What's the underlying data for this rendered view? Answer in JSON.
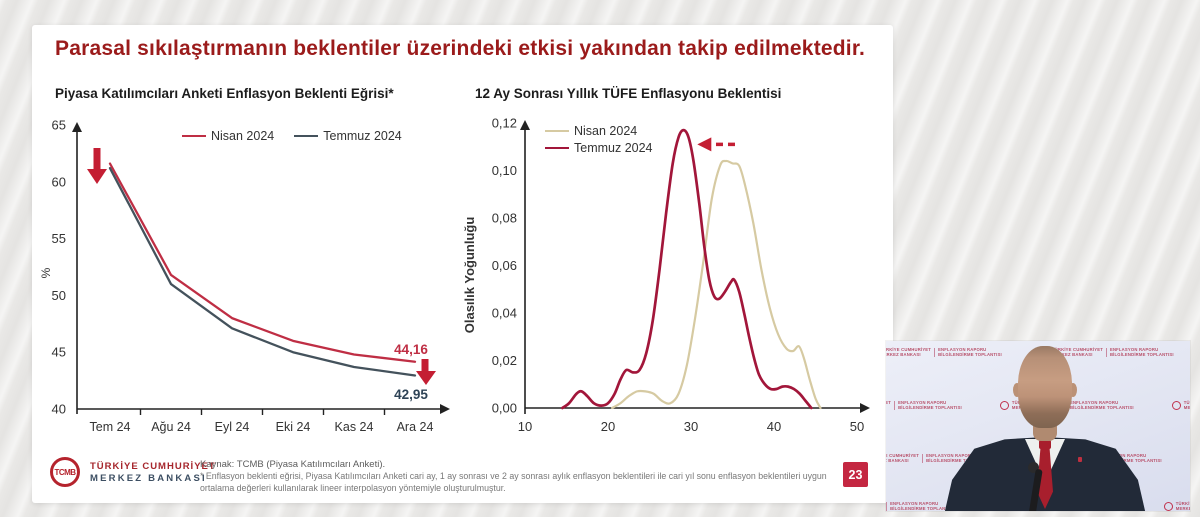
{
  "slide": {
    "title": "Parasal sıkılaştırmanın beklentiler üzerindeki etkisi yakından takip edilmektedir.",
    "page_number": "23",
    "footer": {
      "logo_monogram": "TCMB",
      "bank_name_line1": "TÜRKİYE CUMHURİYET",
      "bank_name_line2": "MERKEZ BANKASI",
      "source": "Kaynak: TCMB (Piyasa Katılımcıları Anketi).",
      "footnote_line1": "* Enflasyon beklenti eğrisi, Piyasa Katılımcıları Anketi cari ay, 1 ay sonrası ve 2 ay sonrası aylık enflasyon beklentileri ile cari yıl sonu enflasyon beklentileri uygun",
      "footnote_line2": "ortalama değerleri kullanılarak lineer interpolasyon yöntemiyle oluşturulmuştur."
    }
  },
  "colors": {
    "title_red": "#9b1b1b",
    "arrow_red": "#c41e33",
    "badge_red": "#c42741",
    "axis": "#222222",
    "tick_text": "#333333",
    "end_label_dark": "#2e4356"
  },
  "chart_data": [
    {
      "type": "line",
      "title": "Piyasa Katılımcıları Anketi Enflasyon Beklenti Eğrisi*",
      "xlabel": "",
      "ylabel": "%",
      "ylim": [
        40,
        65
      ],
      "yticks": [
        40,
        45,
        50,
        55,
        60,
        65
      ],
      "grid": false,
      "legend_position": "top",
      "categories": [
        "Tem 24",
        "Ağu 24",
        "Eyl 24",
        "Eki 24",
        "Kas 24",
        "Ara 24"
      ],
      "series": [
        {
          "name": "Nisan 2024",
          "color": "#bf2e44",
          "values": [
            61.6,
            51.8,
            48.0,
            46.0,
            44.8,
            44.16
          ],
          "end_label": "44,16"
        },
        {
          "name": "Temmuz 2024",
          "color": "#44525c",
          "values": [
            61.2,
            51.0,
            47.1,
            45.0,
            43.7,
            42.95
          ],
          "end_label": "42,95"
        }
      ],
      "annotations": [
        {
          "type": "down-arrow",
          "position": "start"
        },
        {
          "type": "down-arrow",
          "position": "end"
        }
      ]
    },
    {
      "type": "line",
      "title": "12 Ay Sonrası Yıllık TÜFE Enflasyonu Beklentisi",
      "xlabel": "",
      "ylabel": "Olasılık Yoğunluğu",
      "xlim": [
        10,
        50
      ],
      "ylim": [
        0,
        0.12
      ],
      "xticks": [
        10,
        20,
        30,
        40,
        50
      ],
      "ytickvalues": [
        0,
        0.02,
        0.04,
        0.06,
        0.08,
        0.1,
        0.12
      ],
      "yticklabels": [
        "0,00",
        "0,02",
        "0,04",
        "0,06",
        "0,08",
        "0,10",
        "0,12"
      ],
      "grid": false,
      "legend_position": "top-left",
      "series": [
        {
          "name": "Nisan 2024",
          "color": "#d6caa2",
          "points": [
            [
              20.5,
              0
            ],
            [
              21.5,
              0.002
            ],
            [
              22.5,
              0.005
            ],
            [
              23.5,
              0.007
            ],
            [
              24.5,
              0.007
            ],
            [
              25.5,
              0.006
            ],
            [
              26.5,
              0.003
            ],
            [
              27.5,
              0.002
            ],
            [
              28.5,
              0.006
            ],
            [
              29.5,
              0.018
            ],
            [
              30.5,
              0.038
            ],
            [
              31.5,
              0.062
            ],
            [
              32.5,
              0.088
            ],
            [
              33.5,
              0.102
            ],
            [
              34.2,
              0.104
            ],
            [
              35.0,
              0.103
            ],
            [
              35.8,
              0.102
            ],
            [
              36.5,
              0.094
            ],
            [
              37.5,
              0.078
            ],
            [
              38.5,
              0.058
            ],
            [
              39.5,
              0.042
            ],
            [
              40.5,
              0.031
            ],
            [
              41.5,
              0.025
            ],
            [
              42.3,
              0.024
            ],
            [
              43.0,
              0.026
            ],
            [
              43.6,
              0.021
            ],
            [
              44.3,
              0.012
            ],
            [
              45.0,
              0.004
            ],
            [
              45.6,
              0
            ]
          ]
        },
        {
          "name": "Temmuz 2024",
          "color": "#a2163a",
          "points": [
            [
              14.5,
              0
            ],
            [
              15.3,
              0.002
            ],
            [
              16.2,
              0.006
            ],
            [
              16.8,
              0.007
            ],
            [
              17.5,
              0.005
            ],
            [
              18.3,
              0.002
            ],
            [
              19.2,
              0.001
            ],
            [
              20.0,
              0.002
            ],
            [
              20.8,
              0.006
            ],
            [
              21.5,
              0.012
            ],
            [
              22.2,
              0.016
            ],
            [
              23.0,
              0.015
            ],
            [
              23.8,
              0.016
            ],
            [
              24.6,
              0.023
            ],
            [
              25.4,
              0.037
            ],
            [
              26.2,
              0.058
            ],
            [
              27.0,
              0.082
            ],
            [
              27.8,
              0.103
            ],
            [
              28.5,
              0.114
            ],
            [
              29.1,
              0.117
            ],
            [
              29.7,
              0.114
            ],
            [
              30.3,
              0.104
            ],
            [
              31.0,
              0.086
            ],
            [
              31.6,
              0.068
            ],
            [
              32.2,
              0.054
            ],
            [
              32.8,
              0.047
            ],
            [
              33.4,
              0.046
            ],
            [
              34.1,
              0.049
            ],
            [
              34.8,
              0.053
            ],
            [
              35.2,
              0.054
            ],
            [
              35.8,
              0.049
            ],
            [
              36.4,
              0.04
            ],
            [
              37.0,
              0.03
            ],
            [
              37.6,
              0.021
            ],
            [
              38.2,
              0.014
            ],
            [
              38.9,
              0.01
            ],
            [
              39.6,
              0.008
            ],
            [
              40.3,
              0.008
            ],
            [
              41.0,
              0.009
            ],
            [
              41.7,
              0.009
            ],
            [
              42.4,
              0.008
            ],
            [
              43.1,
              0.006
            ],
            [
              43.8,
              0.003
            ],
            [
              44.5,
              0
            ]
          ]
        }
      ],
      "annotations": [
        {
          "type": "dashed-left-arrow",
          "x_from": 35.3,
          "x_to": 31.0,
          "y": 0.111
        }
      ]
    }
  ],
  "video": {
    "backdrop": {
      "org_line1": "TÜRKİYE CUMHURİYET",
      "org_line2": "MERKEZ BANKASI",
      "event_line1": "ENFLASYON RAPORU",
      "event_line2": "BİLGİLENDİRME TOPLANTISI"
    }
  }
}
